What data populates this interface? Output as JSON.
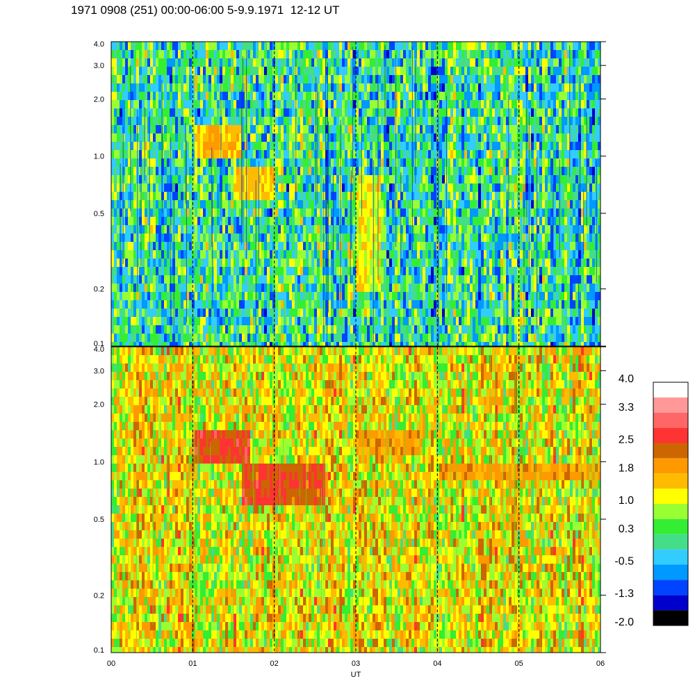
{
  "title": "1971 0908 (251) 00:00-06:00 5-9.9.1971  12-12 UT",
  "chart_data": [
    {
      "type": "heatmap",
      "panel": "upper",
      "y_axis_scale": "log",
      "ylim": [
        0.1,
        4.0
      ],
      "y_tick_labels": [
        "4.0",
        "3.0",
        "2.0",
        "1.0",
        "0.5",
        "0.2",
        "0.1"
      ],
      "y_tick_values": [
        4.0,
        3.0,
        2.0,
        1.0,
        0.5,
        0.2,
        0.1
      ],
      "xlim": [
        0,
        6
      ],
      "dominant_level_range": [
        -1.0,
        1.2
      ],
      "features": [
        {
          "x": [
            1.0,
            1.6
          ],
          "y": [
            1.0,
            1.6
          ],
          "level": 1.6
        },
        {
          "x": [
            1.5,
            2.0
          ],
          "y": [
            0.6,
            0.9
          ],
          "level": 1.4
        },
        {
          "x": [
            3.0,
            3.3
          ],
          "y": [
            0.2,
            0.8
          ],
          "level": 1.2
        }
      ],
      "vertical_markers_x": [
        1,
        2,
        3,
        4,
        5
      ]
    },
    {
      "type": "heatmap",
      "panel": "lower",
      "y_axis_scale": "log",
      "ylim": [
        0.1,
        4.0
      ],
      "y_tick_labels": [
        "4.0",
        "3.0",
        "2.0",
        "1.0",
        "0.5",
        "0.2",
        "0.1"
      ],
      "y_tick_values": [
        4.0,
        3.0,
        2.0,
        1.0,
        0.5,
        0.2,
        0.1
      ],
      "xlim": [
        0,
        6
      ],
      "xlabel": "UT",
      "x_tick_labels": [
        "00",
        "01",
        "02",
        "03",
        "04",
        "05",
        "06"
      ],
      "x_tick_values": [
        0,
        1,
        2,
        3,
        4,
        5,
        6
      ],
      "dominant_level_range": [
        0.3,
        2.2
      ],
      "features": [
        {
          "x": [
            1.0,
            1.7
          ],
          "y": [
            1.0,
            1.6
          ],
          "level": 2.6
        },
        {
          "x": [
            1.6,
            2.6
          ],
          "y": [
            0.6,
            1.0
          ],
          "level": 2.5
        },
        {
          "x": [
            3.0,
            3.8
          ],
          "y": [
            1.1,
            1.5
          ],
          "level": 1.9
        },
        {
          "x": [
            4.0,
            6.0
          ],
          "y": [
            0.8,
            1.0
          ],
          "level": 1.9
        }
      ],
      "vertical_markers_x": [
        1,
        2,
        3,
        4,
        5
      ]
    }
  ],
  "colorbar": {
    "labels": [
      "4.0",
      "3.3",
      "2.5",
      "1.8",
      "1.0",
      "0.3",
      "-0.5",
      "-1.3",
      "-2.0"
    ],
    "colors": [
      "#ffffff",
      "#ff9999",
      "#ff6666",
      "#ff3333",
      "#cc6600",
      "#ff9900",
      "#ffbb00",
      "#ffff00",
      "#99ff33",
      "#33ee33",
      "#44dd88",
      "#33ccff",
      "#0099ff",
      "#0044ff",
      "#0000cc",
      "#000000"
    ]
  }
}
